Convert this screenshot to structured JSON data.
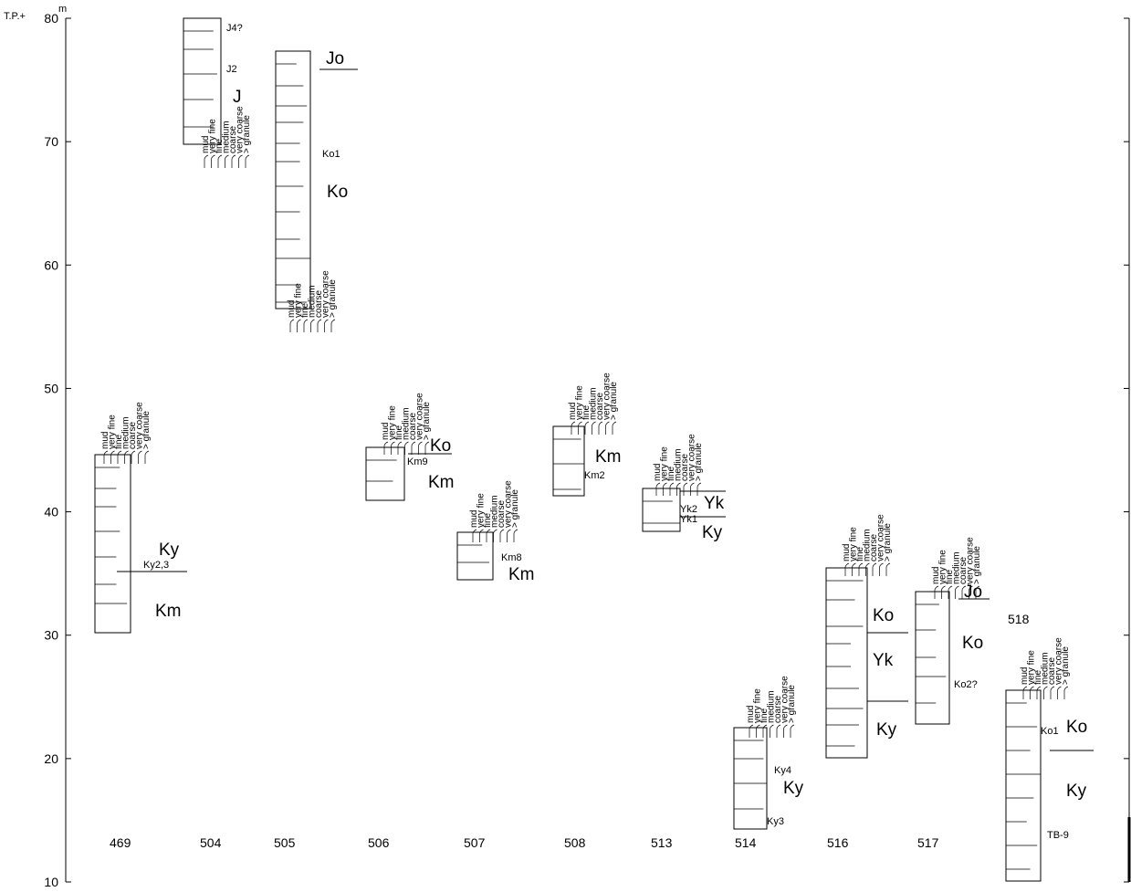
{
  "axis": {
    "prefix": "T.P.+",
    "unit": "m",
    "ticks": [
      10,
      20,
      30,
      40,
      50,
      60,
      70,
      80
    ]
  },
  "grain_scale": [
    "mud",
    "very fine",
    "fine",
    "medium",
    "coarse",
    "very coarse",
    "> granule"
  ],
  "sections": [
    {
      "id": "469",
      "labels": [
        "Ky",
        "Ky2,3",
        "Km"
      ]
    },
    {
      "id": "504",
      "labels": [
        "J4?",
        "J2",
        "J"
      ]
    },
    {
      "id": "505",
      "labels": [
        "Jo",
        "Ko1",
        "Ko"
      ]
    },
    {
      "id": "506",
      "labels": [
        "Ko",
        "Km9",
        "Km"
      ]
    },
    {
      "id": "507",
      "labels": [
        "Km8",
        "Km"
      ]
    },
    {
      "id": "508",
      "labels": [
        "Km",
        "Km2"
      ]
    },
    {
      "id": "513",
      "labels": [
        "Yk2",
        "Yk1",
        "Yk",
        "Ky"
      ]
    },
    {
      "id": "514",
      "labels": [
        "Ky4",
        "Ky",
        "Ky3"
      ]
    },
    {
      "id": "516",
      "labels": [
        "Ko",
        "Yk",
        "Ky"
      ]
    },
    {
      "id": "517",
      "labels": [
        "Jo",
        "Ko",
        "Ko2?"
      ]
    },
    {
      "id": "518",
      "labels": [
        "Ko1",
        "Ko",
        "Ky",
        "TB-9"
      ]
    }
  ]
}
